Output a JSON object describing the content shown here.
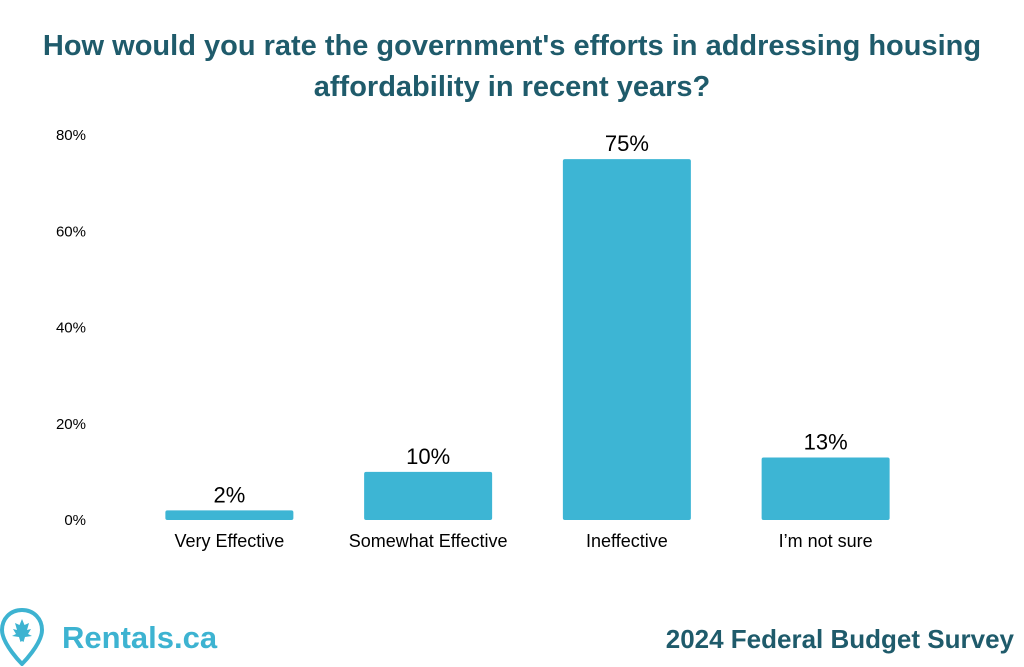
{
  "chart_data": {
    "type": "bar",
    "title": "How would you rate the government's efforts in addressing housing affordability in recent years?",
    "categories": [
      "Very Effective",
      "Somewhat Effective",
      "Ineffective",
      "I’m not sure"
    ],
    "values": [
      2,
      10,
      75,
      13
    ],
    "value_labels": [
      "2%",
      "10%",
      "75%",
      "13%"
    ],
    "yticks": [
      "0%",
      "20%",
      "40%",
      "60%",
      "80%"
    ],
    "ylim": [
      0,
      80
    ],
    "grid": false,
    "bar_color": "#3db5d4",
    "xlabel": "",
    "ylabel": ""
  },
  "footer": {
    "brand": "Rentals.ca",
    "survey": "2024 Federal Budget Survey",
    "logo_icon": "maple-leaf-pin-icon",
    "brand_color": "#3db3d1"
  }
}
